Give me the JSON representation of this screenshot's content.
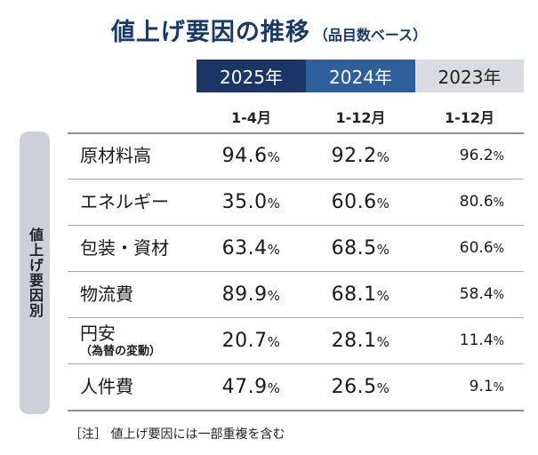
{
  "title": {
    "main": "値上げ要因の推移",
    "sub": "（品目数ベース）"
  },
  "side_label": "値上げ要因別",
  "note": "［注］ 値上げ要因には一部重複を含む",
  "chart_data": {
    "type": "table",
    "title": "値上げ要因の推移（品目数ベース）",
    "columns": [
      {
        "year": "2025年",
        "period": "1-4月"
      },
      {
        "year": "2024年",
        "period": "1-12月"
      },
      {
        "year": "2023年",
        "period": "1-12月"
      }
    ],
    "rows": [
      {
        "label": "原材料高",
        "values": [
          94.6,
          92.2,
          96.2
        ]
      },
      {
        "label": "エネルギー",
        "values": [
          35.0,
          60.6,
          80.6
        ]
      },
      {
        "label": "包装・資材",
        "values": [
          63.4,
          68.5,
          60.6
        ]
      },
      {
        "label": "物流費",
        "values": [
          89.9,
          68.1,
          58.4
        ]
      },
      {
        "label": "円安",
        "sublabel": "（為替の変動）",
        "values": [
          20.7,
          28.1,
          11.4
        ]
      },
      {
        "label": "人件費",
        "values": [
          47.9,
          26.5,
          9.1
        ]
      }
    ],
    "display": [
      [
        "94.6",
        "92.2",
        "96.2"
      ],
      [
        "35.0",
        "60.6",
        "80.6"
      ],
      [
        "63.4",
        "68.5",
        "60.6"
      ],
      [
        "89.9",
        "68.1",
        "58.4"
      ],
      [
        "20.7",
        "28.1",
        "11.4"
      ],
      [
        "47.9",
        "26.5",
        "9.1"
      ]
    ],
    "unit": "%",
    "colors": {
      "col_2025": "#1b3566",
      "col_2024": "#2f5f9b",
      "col_2023": "#d9dbe0",
      "title": "#173a6b"
    }
  }
}
